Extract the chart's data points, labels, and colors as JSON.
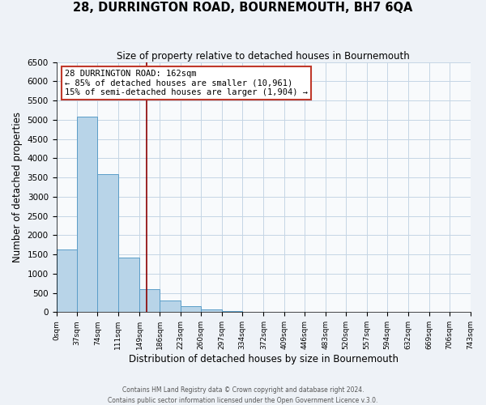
{
  "title": "28, DURRINGTON ROAD, BOURNEMOUTH, BH7 6QA",
  "subtitle": "Size of property relative to detached houses in Bournemouth",
  "xlabel": "Distribution of detached houses by size in Bournemouth",
  "ylabel": "Number of detached properties",
  "bar_edges": [
    0,
    37,
    74,
    111,
    149,
    186,
    223,
    260,
    297,
    334,
    372,
    409,
    446,
    483,
    520,
    557,
    594,
    632,
    669,
    706,
    743
  ],
  "bar_heights": [
    1630,
    5080,
    3580,
    1420,
    590,
    305,
    150,
    80,
    30,
    0,
    0,
    0,
    0,
    0,
    0,
    0,
    0,
    0,
    0,
    0
  ],
  "bar_color": "#b8d4e8",
  "bar_edge_color": "#5a9dc8",
  "ylim": [
    0,
    6500
  ],
  "yticks": [
    0,
    500,
    1000,
    1500,
    2000,
    2500,
    3000,
    3500,
    4000,
    4500,
    5000,
    5500,
    6000,
    6500
  ],
  "vline_x": 162,
  "vline_color": "#8b0000",
  "annotation_title": "28 DURRINGTON ROAD: 162sqm",
  "annotation_line1": "← 85% of detached houses are smaller (10,961)",
  "annotation_line2": "15% of semi-detached houses are larger (1,904) →",
  "annotation_box_color": "#c0392b",
  "tick_labels": [
    "0sqm",
    "37sqm",
    "74sqm",
    "111sqm",
    "149sqm",
    "186sqm",
    "223sqm",
    "260sqm",
    "297sqm",
    "334sqm",
    "372sqm",
    "409sqm",
    "446sqm",
    "483sqm",
    "520sqm",
    "557sqm",
    "594sqm",
    "632sqm",
    "669sqm",
    "706sqm",
    "743sqm"
  ],
  "footer1": "Contains HM Land Registry data © Crown copyright and database right 2024.",
  "footer2": "Contains public sector information licensed under the Open Government Licence v.3.0.",
  "background_color": "#eef2f7",
  "plot_bg_color": "#f8fafc",
  "grid_color": "#c5d5e5"
}
